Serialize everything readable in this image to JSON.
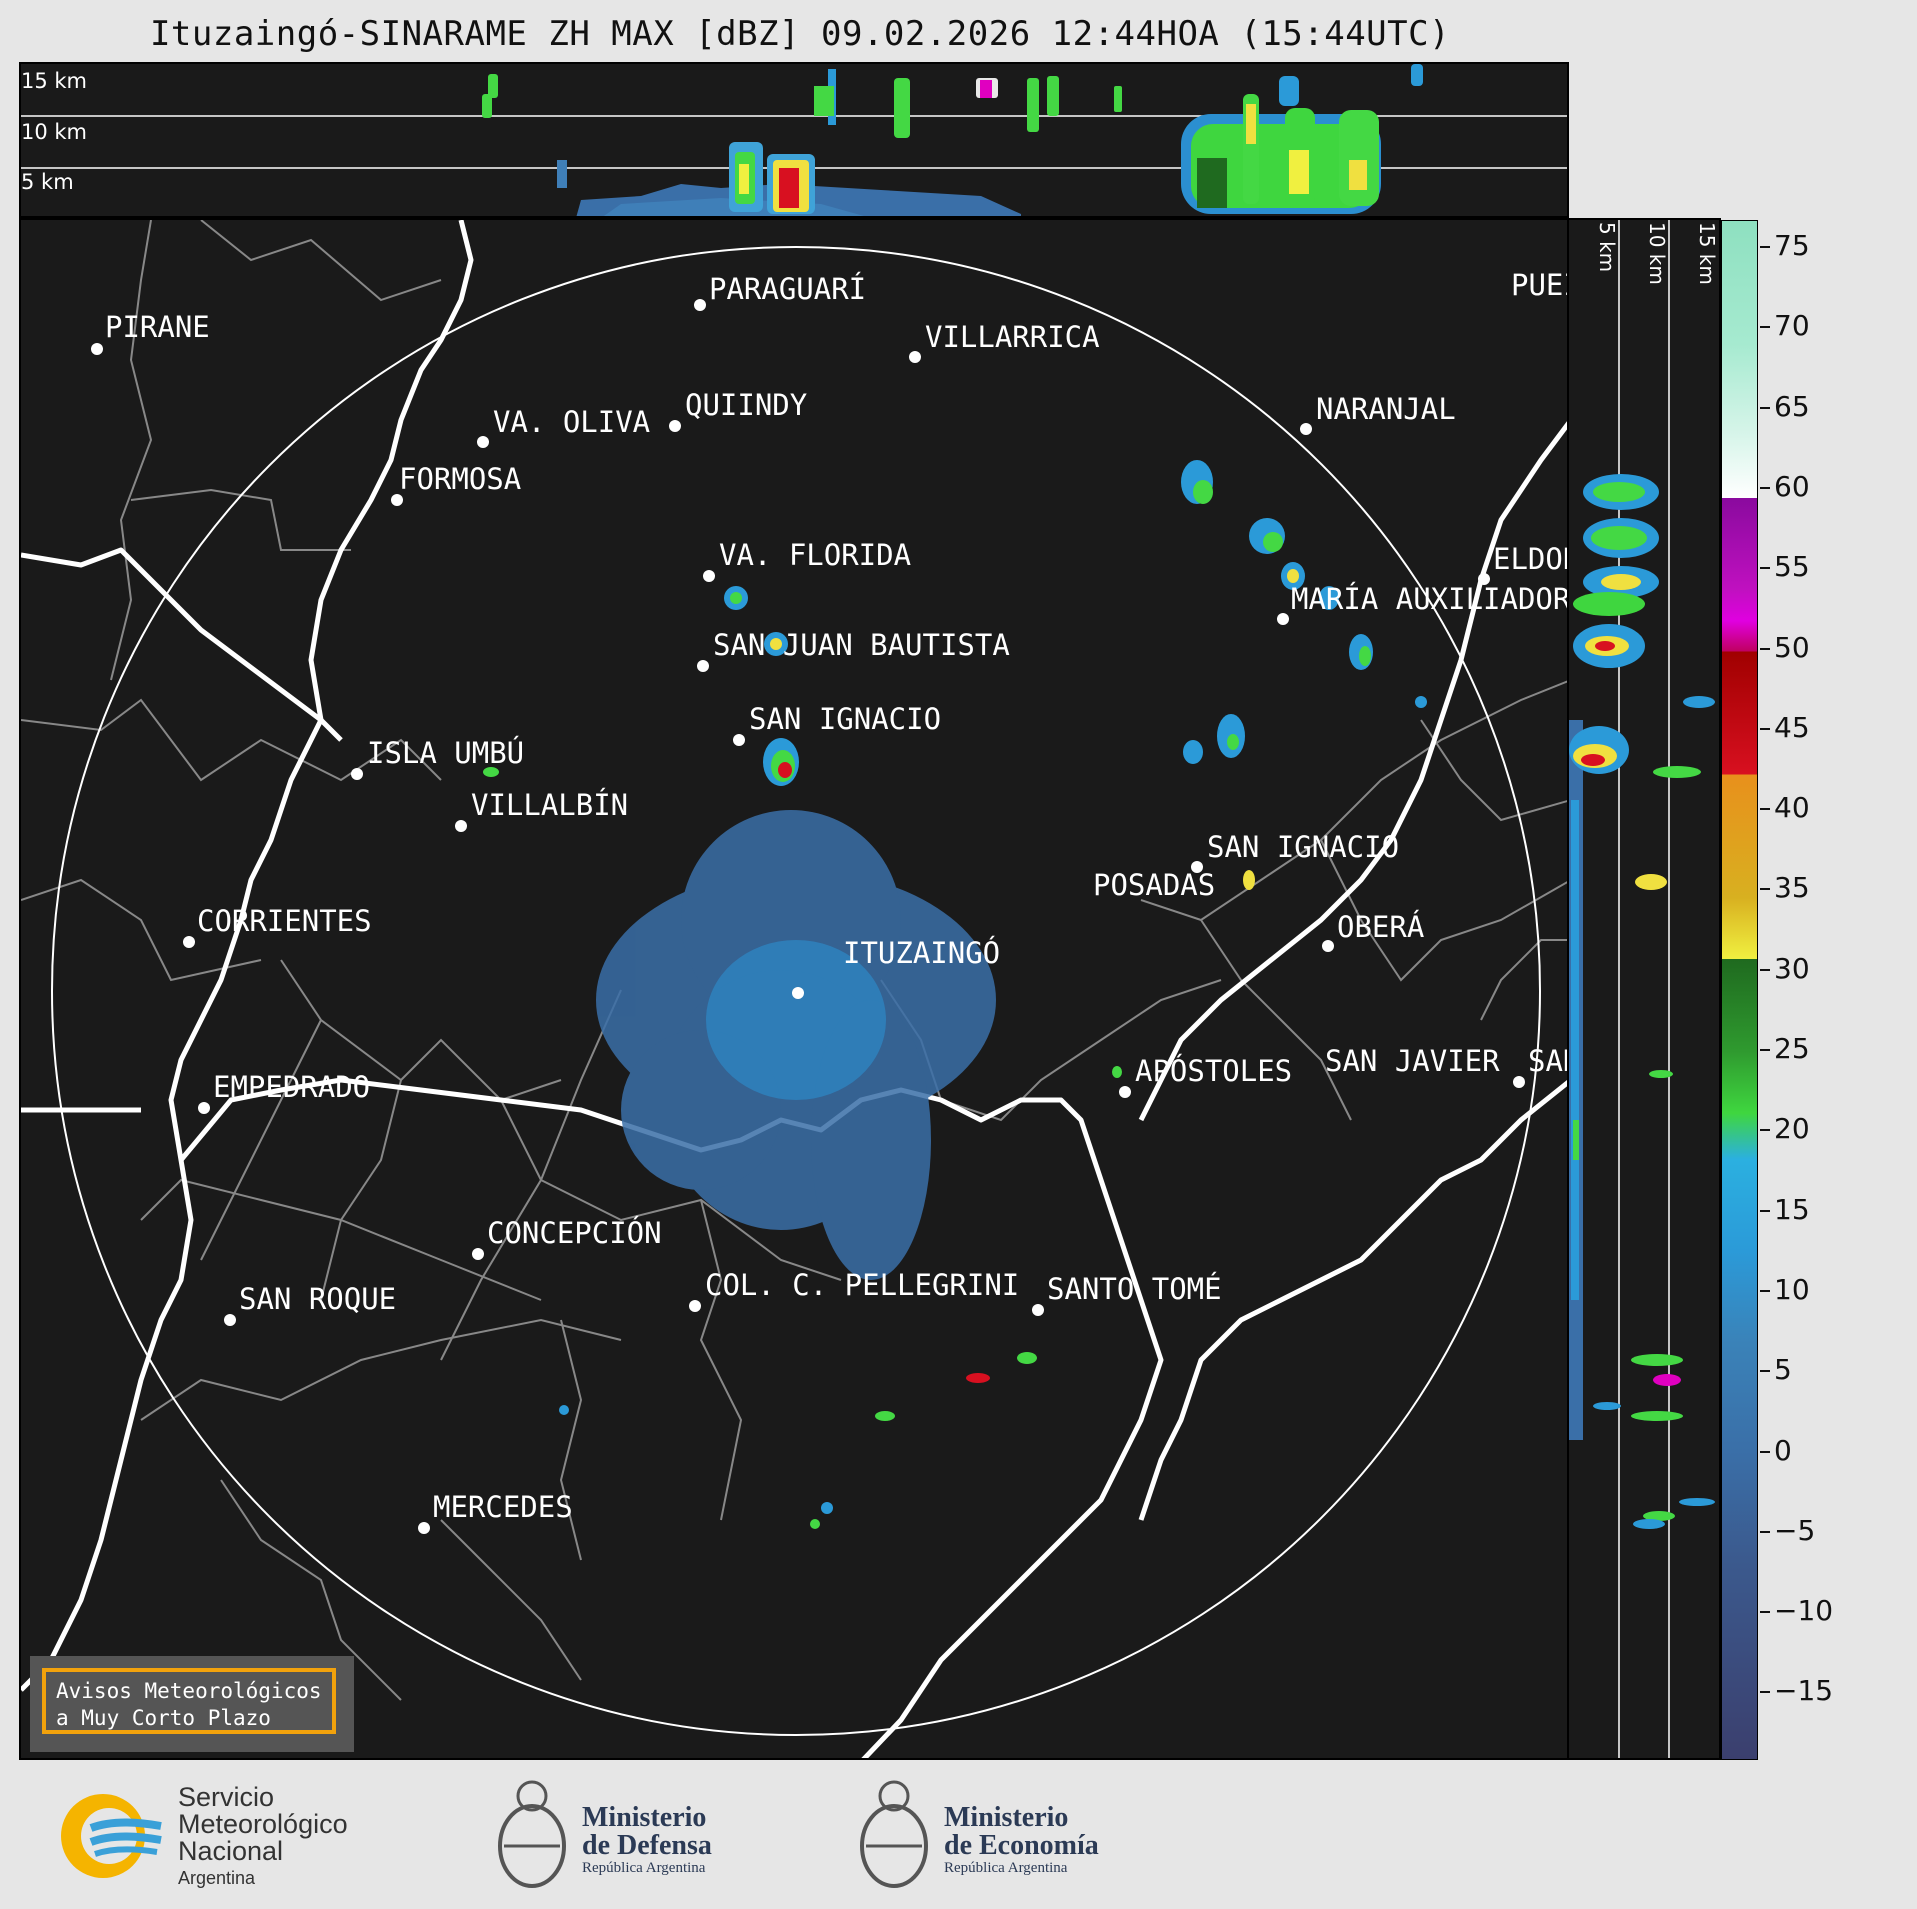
{
  "title": "Ituzaingó-SINARAME ZH MAX [dBZ] 09.02.2026 12:44HOA (15:44UTC)",
  "altitude_labels": [
    "15 km",
    "10 km",
    "5 km"
  ],
  "cities": [
    {
      "name": "PIRANE"
    },
    {
      "name": "PARAGUARÍ"
    },
    {
      "name": "VILLARRICA"
    },
    {
      "name": "QUIINDY"
    },
    {
      "name": "VA. OLIVA"
    },
    {
      "name": "NARANJAL"
    },
    {
      "name": "FORMOSA"
    },
    {
      "name": "VA. FLORIDA"
    },
    {
      "name": "ELDOR"
    },
    {
      "name": "MARÍA AUXILIADOR"
    },
    {
      "name": "SAN JUAN BAUTISTA"
    },
    {
      "name": "SAN IGNACIO"
    },
    {
      "name": "ISLA UMBÚ"
    },
    {
      "name": "VILLALBÍN"
    },
    {
      "name": "SAN IGNACIO"
    },
    {
      "name": "POSADAS"
    },
    {
      "name": "CORRIENTES"
    },
    {
      "name": "ITUZAINGÓ"
    },
    {
      "name": "OBERÁ"
    },
    {
      "name": "APÓSTOLES"
    },
    {
      "name": "SAN JAVIER"
    },
    {
      "name": "SAN"
    },
    {
      "name": "EMPEDRADO"
    },
    {
      "name": "CONCEPCIÓN"
    },
    {
      "name": "COL. C. PELLEGRINI"
    },
    {
      "name": "SANTO TOMÉ"
    },
    {
      "name": "SAN ROQUE"
    },
    {
      "name": "MERCEDES"
    },
    {
      "name": "PUEI"
    }
  ],
  "warning_box": {
    "line1": "Avisos Meteorológicos",
    "line2": "a Muy Corto Plazo"
  },
  "colorbar": {
    "unit": "dBZ",
    "ticks": [
      "75",
      "70",
      "65",
      "60",
      "55",
      "50",
      "45",
      "40",
      "35",
      "30",
      "25",
      "20",
      "15",
      "10",
      "5",
      "0",
      "−5",
      "−10",
      "−15"
    ],
    "colors": {
      "low": "#3b3f6e",
      "mid_blue": "#3a82b8",
      "cyan": "#2bb0e0",
      "green": "#3fd63f",
      "dark_green": "#1f6a1f",
      "yellow": "#f0f040",
      "orange": "#e8901c",
      "red": "#d81020",
      "dark_red": "#a00000",
      "magenta": "#e000e0",
      "purple": "#8a0a9e",
      "white": "#ffffff",
      "mint": "#8ee0c0"
    }
  },
  "logos": {
    "smn": {
      "line1": "Servicio",
      "line2": "Meteorológico",
      "line3": "Nacional",
      "line4": "Argentina"
    },
    "defensa": {
      "line1": "Ministerio",
      "line2": "de Defensa",
      "line3": "República Argentina"
    },
    "economia": {
      "line1": "Ministerio",
      "line2": "de Economía",
      "line3": "República Argentina"
    }
  }
}
